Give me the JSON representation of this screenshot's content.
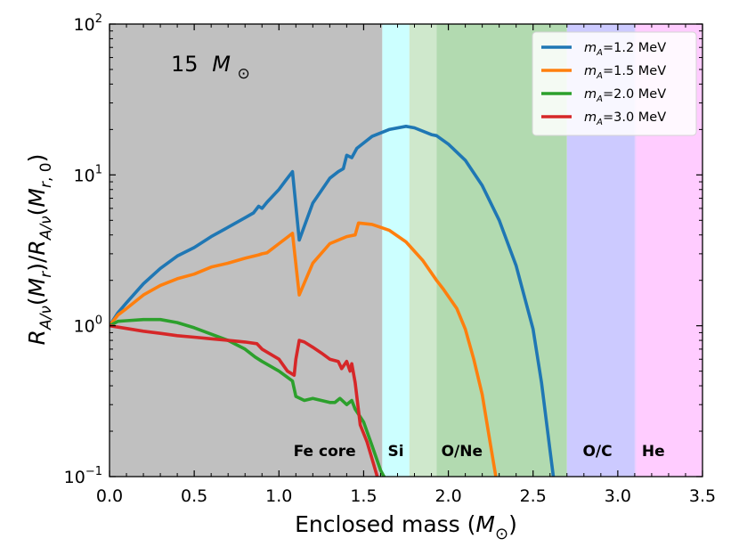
{
  "chart_data": {
    "type": "line",
    "title": "",
    "annotation": {
      "label": "15",
      "unit": "M",
      "sub": "⊙"
    },
    "xlabel": {
      "text": "Enclosed mass (",
      "var": "M",
      "sub": "⊙",
      "close": ")"
    },
    "ylabel": {
      "text": "R_A/ν(M_r)/R_A/ν(M_r,0)"
    },
    "xlim": [
      0.0,
      3.5
    ],
    "ylim": [
      0.1,
      100
    ],
    "yscale": "log",
    "xticks": [
      0.0,
      0.5,
      1.0,
      1.5,
      2.0,
      2.5,
      3.0,
      3.5
    ],
    "xtick_labels": [
      "0.0",
      "0.5",
      "1.0",
      "1.5",
      "2.0",
      "2.5",
      "3.0",
      "3.5"
    ],
    "yticks": [
      {
        "value": 0.1,
        "base": "10",
        "exp": "−1"
      },
      {
        "value": 1,
        "base": "10",
        "exp": "0"
      },
      {
        "value": 10,
        "base": "10",
        "exp": "1"
      },
      {
        "value": 100,
        "base": "10",
        "exp": "2"
      }
    ],
    "regions": [
      {
        "name": "Fe core",
        "x0": 0.0,
        "x1": 1.61,
        "color": "#c0c0c0",
        "label_x": 1.27
      },
      {
        "name": "Si",
        "x0": 1.61,
        "x1": 1.77,
        "color": "#ccffff",
        "label_x": 1.69
      },
      {
        "name": "",
        "x0": 1.77,
        "x1": 1.93,
        "color": "#cfe8cc",
        "label_x": null
      },
      {
        "name": "O/Ne",
        "x0": 1.93,
        "x1": 2.7,
        "color": "#b2dab0",
        "label_x": 2.08
      },
      {
        "name": "O/C",
        "x0": 2.7,
        "x1": 3.1,
        "color": "#cccaff",
        "label_x": 2.88
      },
      {
        "name": "",
        "x0": 3.1,
        "x1": 3.11,
        "color": "#eecaff",
        "label_x": null
      },
      {
        "name": "He",
        "x0": 3.11,
        "x1": 3.5,
        "color": "#ffccff",
        "label_x": 3.21
      }
    ],
    "legend_position": "top-right",
    "series": [
      {
        "name": "m_A=1.2 MeV",
        "legend_var": "m",
        "legend_sub": "A",
        "legend_rest": "=1.2 MeV",
        "color": "#1f77b4",
        "points": [
          [
            0.0,
            1.0
          ],
          [
            0.05,
            1.22
          ],
          [
            0.1,
            1.42
          ],
          [
            0.2,
            1.9
          ],
          [
            0.3,
            2.4
          ],
          [
            0.4,
            2.9
          ],
          [
            0.5,
            3.3
          ],
          [
            0.6,
            3.9
          ],
          [
            0.7,
            4.5
          ],
          [
            0.8,
            5.2
          ],
          [
            0.85,
            5.6
          ],
          [
            0.88,
            6.2
          ],
          [
            0.9,
            6.0
          ],
          [
            0.93,
            6.6
          ],
          [
            1.0,
            8.0
          ],
          [
            1.04,
            9.2
          ],
          [
            1.08,
            10.5
          ],
          [
            1.12,
            3.7
          ],
          [
            1.2,
            6.5
          ],
          [
            1.3,
            9.5
          ],
          [
            1.35,
            10.5
          ],
          [
            1.38,
            11.0
          ],
          [
            1.4,
            13.5
          ],
          [
            1.43,
            13.0
          ],
          [
            1.46,
            15.0
          ],
          [
            1.55,
            18.0
          ],
          [
            1.65,
            20.0
          ],
          [
            1.75,
            21.0
          ],
          [
            1.8,
            20.5
          ],
          [
            1.9,
            18.5
          ],
          [
            1.93,
            18.2
          ],
          [
            2.0,
            16.0
          ],
          [
            2.1,
            12.5
          ],
          [
            2.2,
            8.5
          ],
          [
            2.3,
            5.0
          ],
          [
            2.4,
            2.5
          ],
          [
            2.5,
            0.95
          ],
          [
            2.55,
            0.42
          ],
          [
            2.6,
            0.15
          ],
          [
            2.62,
            0.1
          ]
        ]
      },
      {
        "name": "m_A=1.5 MeV",
        "legend_var": "m",
        "legend_sub": "A",
        "legend_rest": "=1.5 MeV",
        "color": "#ff7f0e",
        "points": [
          [
            0.0,
            1.0
          ],
          [
            0.05,
            1.18
          ],
          [
            0.1,
            1.3
          ],
          [
            0.2,
            1.6
          ],
          [
            0.3,
            1.85
          ],
          [
            0.4,
            2.05
          ],
          [
            0.5,
            2.2
          ],
          [
            0.6,
            2.45
          ],
          [
            0.7,
            2.6
          ],
          [
            0.8,
            2.8
          ],
          [
            0.88,
            2.95
          ],
          [
            0.9,
            3.0
          ],
          [
            0.93,
            3.05
          ],
          [
            1.0,
            3.5
          ],
          [
            1.08,
            4.1
          ],
          [
            1.12,
            1.6
          ],
          [
            1.2,
            2.6
          ],
          [
            1.3,
            3.5
          ],
          [
            1.4,
            3.9
          ],
          [
            1.45,
            4.0
          ],
          [
            1.47,
            4.8
          ],
          [
            1.55,
            4.7
          ],
          [
            1.65,
            4.3
          ],
          [
            1.75,
            3.6
          ],
          [
            1.85,
            2.7
          ],
          [
            1.93,
            2.0
          ],
          [
            1.97,
            1.75
          ],
          [
            2.05,
            1.3
          ],
          [
            2.1,
            0.95
          ],
          [
            2.15,
            0.6
          ],
          [
            2.2,
            0.35
          ],
          [
            2.25,
            0.16
          ],
          [
            2.28,
            0.1
          ]
        ]
      },
      {
        "name": "m_A=2.0 MeV",
        "legend_var": "m",
        "legend_sub": "A",
        "legend_rest": "=2.0 MeV",
        "color": "#2ca02c",
        "points": [
          [
            0.0,
            1.0
          ],
          [
            0.05,
            1.07
          ],
          [
            0.1,
            1.08
          ],
          [
            0.2,
            1.1
          ],
          [
            0.3,
            1.1
          ],
          [
            0.4,
            1.05
          ],
          [
            0.5,
            0.97
          ],
          [
            0.6,
            0.88
          ],
          [
            0.7,
            0.8
          ],
          [
            0.8,
            0.7
          ],
          [
            0.86,
            0.62
          ],
          [
            0.9,
            0.58
          ],
          [
            1.0,
            0.5
          ],
          [
            1.08,
            0.43
          ],
          [
            1.1,
            0.34
          ],
          [
            1.15,
            0.32
          ],
          [
            1.2,
            0.33
          ],
          [
            1.25,
            0.32
          ],
          [
            1.3,
            0.31
          ],
          [
            1.33,
            0.31
          ],
          [
            1.36,
            0.33
          ],
          [
            1.4,
            0.3
          ],
          [
            1.43,
            0.32
          ],
          [
            1.45,
            0.28
          ],
          [
            1.5,
            0.23
          ],
          [
            1.55,
            0.16
          ],
          [
            1.6,
            0.11
          ],
          [
            1.62,
            0.1
          ]
        ]
      },
      {
        "name": "m_A=3.0 MeV",
        "legend_var": "m",
        "legend_sub": "A",
        "legend_rest": "=3.0 MeV",
        "color": "#d62728",
        "points": [
          [
            0.0,
            1.0
          ],
          [
            0.1,
            0.96
          ],
          [
            0.2,
            0.92
          ],
          [
            0.3,
            0.89
          ],
          [
            0.4,
            0.86
          ],
          [
            0.5,
            0.84
          ],
          [
            0.6,
            0.82
          ],
          [
            0.7,
            0.8
          ],
          [
            0.8,
            0.78
          ],
          [
            0.87,
            0.76
          ],
          [
            0.9,
            0.7
          ],
          [
            1.0,
            0.6
          ],
          [
            1.05,
            0.5
          ],
          [
            1.09,
            0.47
          ],
          [
            1.1,
            0.6
          ],
          [
            1.12,
            0.8
          ],
          [
            1.15,
            0.78
          ],
          [
            1.2,
            0.72
          ],
          [
            1.25,
            0.66
          ],
          [
            1.3,
            0.6
          ],
          [
            1.35,
            0.58
          ],
          [
            1.37,
            0.52
          ],
          [
            1.4,
            0.58
          ],
          [
            1.42,
            0.5
          ],
          [
            1.43,
            0.56
          ],
          [
            1.45,
            0.42
          ],
          [
            1.48,
            0.22
          ],
          [
            1.52,
            0.17
          ],
          [
            1.56,
            0.12
          ],
          [
            1.58,
            0.1
          ]
        ]
      }
    ]
  }
}
